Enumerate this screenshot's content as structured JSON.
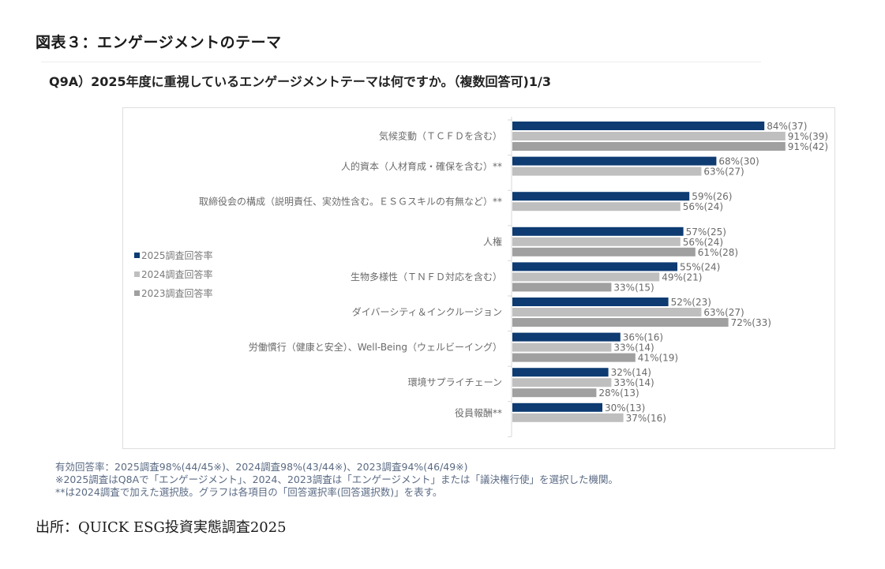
{
  "figure_title": "図表３：エンゲージメントのテーマ",
  "question": "Q9A）2025年度に重視しているエンゲージメントテーマは何ですか。（複数回答可)1/3",
  "notes": [
    "有効回答率：2025調査98%(44/45※)、2024調査98%(43/44※)、2023調査94%(46/49※)",
    "※2025調査はQ8Aで「エンゲージメント」、2024、2023調査は「エンゲージメント」または「議決権行使」を選択した機関。",
    "**は2024調査で加えた選択肢。グラフは各項目の「回答選択率(回答選択数)」を表す。"
  ],
  "source": "出所：QUICK ESG投資実態調査2025",
  "chart_data": {
    "type": "bar",
    "orientation": "horizontal",
    "title": "Q9A）2025年度に重視しているエンゲージメントテーマは何ですか。（複数回答可)1/3",
    "xlabel": "",
    "ylabel": "",
    "xlim": [
      0,
      100
    ],
    "grid": false,
    "legend_position": "left",
    "categories": [
      "気候変動（ＴＣＦＤを含む）",
      "人的資本（人材育成・確保を含む）**",
      "取締役会の構成（説明責任、実効性含む。ＥＳＧスキルの有無など）**",
      "人権",
      "生物多様性（ＴＮＦＤ対応を含む）",
      "ダイバーシティ＆インクルージョン",
      "労働慣行（健康と安全）、Well-Being（ウェルビーイング）",
      "環境サプライチェーン",
      "役員報酬**"
    ],
    "series": [
      {
        "name": "2025調査回答率",
        "color": "#0d3b72",
        "values": [
          84,
          68,
          59,
          57,
          55,
          52,
          36,
          32,
          30
        ],
        "counts": [
          37,
          30,
          26,
          25,
          24,
          23,
          16,
          14,
          13
        ],
        "labels": [
          "84%(37)",
          "68%(30)",
          "59%(26)",
          "57%(25)",
          "55%(24)",
          "52%(23)",
          "36%(16)",
          "32%(14)",
          "30%(13)"
        ]
      },
      {
        "name": "2024調査回答率",
        "color": "#bfbfbf",
        "values": [
          91,
          63,
          56,
          56,
          49,
          63,
          33,
          33,
          37
        ],
        "counts": [
          39,
          27,
          24,
          24,
          21,
          27,
          14,
          14,
          16
        ],
        "labels": [
          "91%(39)",
          "63%(27)",
          "56%(24)",
          "56%(24)",
          "49%(21)",
          "63%(27)",
          "33%(14)",
          "33%(14)",
          "37%(16)"
        ]
      },
      {
        "name": "2023調査回答率",
        "color": "#a0a0a0",
        "values": [
          91,
          null,
          null,
          61,
          33,
          72,
          41,
          28,
          null
        ],
        "counts": [
          42,
          null,
          null,
          28,
          15,
          33,
          19,
          13,
          null
        ],
        "labels": [
          "91%(42)",
          null,
          null,
          "61%(28)",
          "33%(15)",
          "72%(33)",
          "41%(19)",
          "28%(13)",
          null
        ]
      }
    ]
  }
}
